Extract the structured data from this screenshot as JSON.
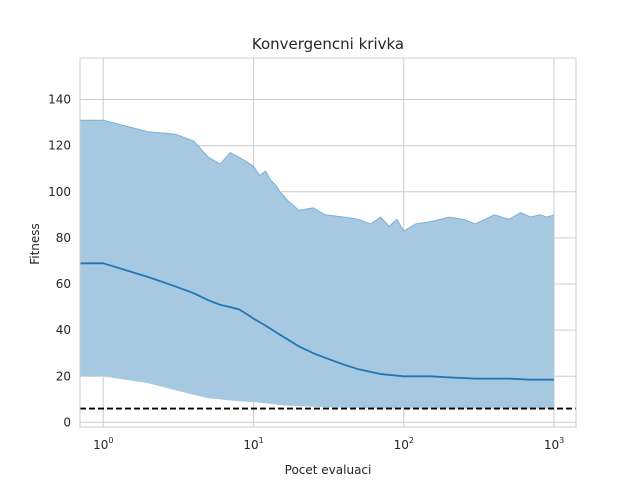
{
  "chart_data": {
    "type": "area",
    "title": "Konvergencni krivka",
    "xlabel": "Pocet evaluaci",
    "ylabel": "Fitness",
    "x_scale": "log",
    "xlim": [
      0.7,
      1400
    ],
    "ylim": [
      -2,
      158
    ],
    "grid": true,
    "legend": "none",
    "x_ticks": [
      {
        "value": 1,
        "base": "10",
        "exp": "0"
      },
      {
        "value": 10,
        "base": "10",
        "exp": "1"
      },
      {
        "value": 100,
        "base": "10",
        "exp": "2"
      },
      {
        "value": 1000,
        "base": "10",
        "exp": "3"
      }
    ],
    "y_ticks": [
      0,
      20,
      40,
      60,
      80,
      100,
      120,
      140
    ],
    "colors": {
      "line": "#1f77b4",
      "band_fill": "#a6c8e0",
      "band_edge": "#7fb0d4",
      "reference": "#000000",
      "grid": "#cccccc",
      "spine": "#cccccc"
    },
    "series": [
      {
        "x": [
          0.7,
          1,
          2,
          3,
          4,
          5,
          6,
          7,
          8,
          9,
          10,
          12,
          15,
          20,
          25,
          30,
          40,
          50,
          70,
          100,
          150,
          200,
          300,
          500,
          700,
          1000
        ],
        "values": [
          69,
          69,
          63,
          59,
          56,
          53,
          51,
          50,
          49,
          47,
          45,
          42,
          38,
          33,
          30,
          28,
          25,
          23,
          21,
          20,
          20,
          19.5,
          19,
          19,
          18.5,
          18.5
        ]
      }
    ],
    "band": {
      "x": [
        0.7,
        1,
        2,
        3,
        4,
        5,
        6,
        7,
        8,
        9,
        10,
        11,
        12,
        13,
        14,
        15,
        17,
        20,
        25,
        30,
        40,
        50,
        60,
        70,
        80,
        90,
        100,
        120,
        150,
        200,
        250,
        300,
        400,
        500,
        600,
        700,
        800,
        900,
        1000
      ],
      "upper": [
        131,
        131,
        126,
        125,
        122,
        115,
        112,
        117,
        115,
        113,
        111,
        107,
        109,
        105,
        103,
        100,
        96,
        92,
        93,
        90,
        89,
        88,
        86,
        89,
        85,
        88,
        83,
        86,
        87,
        89,
        88,
        86,
        90,
        88,
        91,
        89,
        90,
        89,
        90
      ],
      "lower": [
        20,
        20,
        17,
        14,
        12,
        10.5,
        10,
        9.5,
        9.2,
        9,
        8.8,
        8.5,
        8.3,
        8,
        7.8,
        7.5,
        7.2,
        7,
        6.8,
        6.6,
        6.4,
        6.2,
        6.1,
        6,
        6,
        6,
        6,
        6,
        6,
        6,
        6,
        6,
        6,
        6,
        6,
        6,
        6,
        6,
        6
      ]
    },
    "reference_line": {
      "y": 6,
      "style": "dashed"
    }
  }
}
